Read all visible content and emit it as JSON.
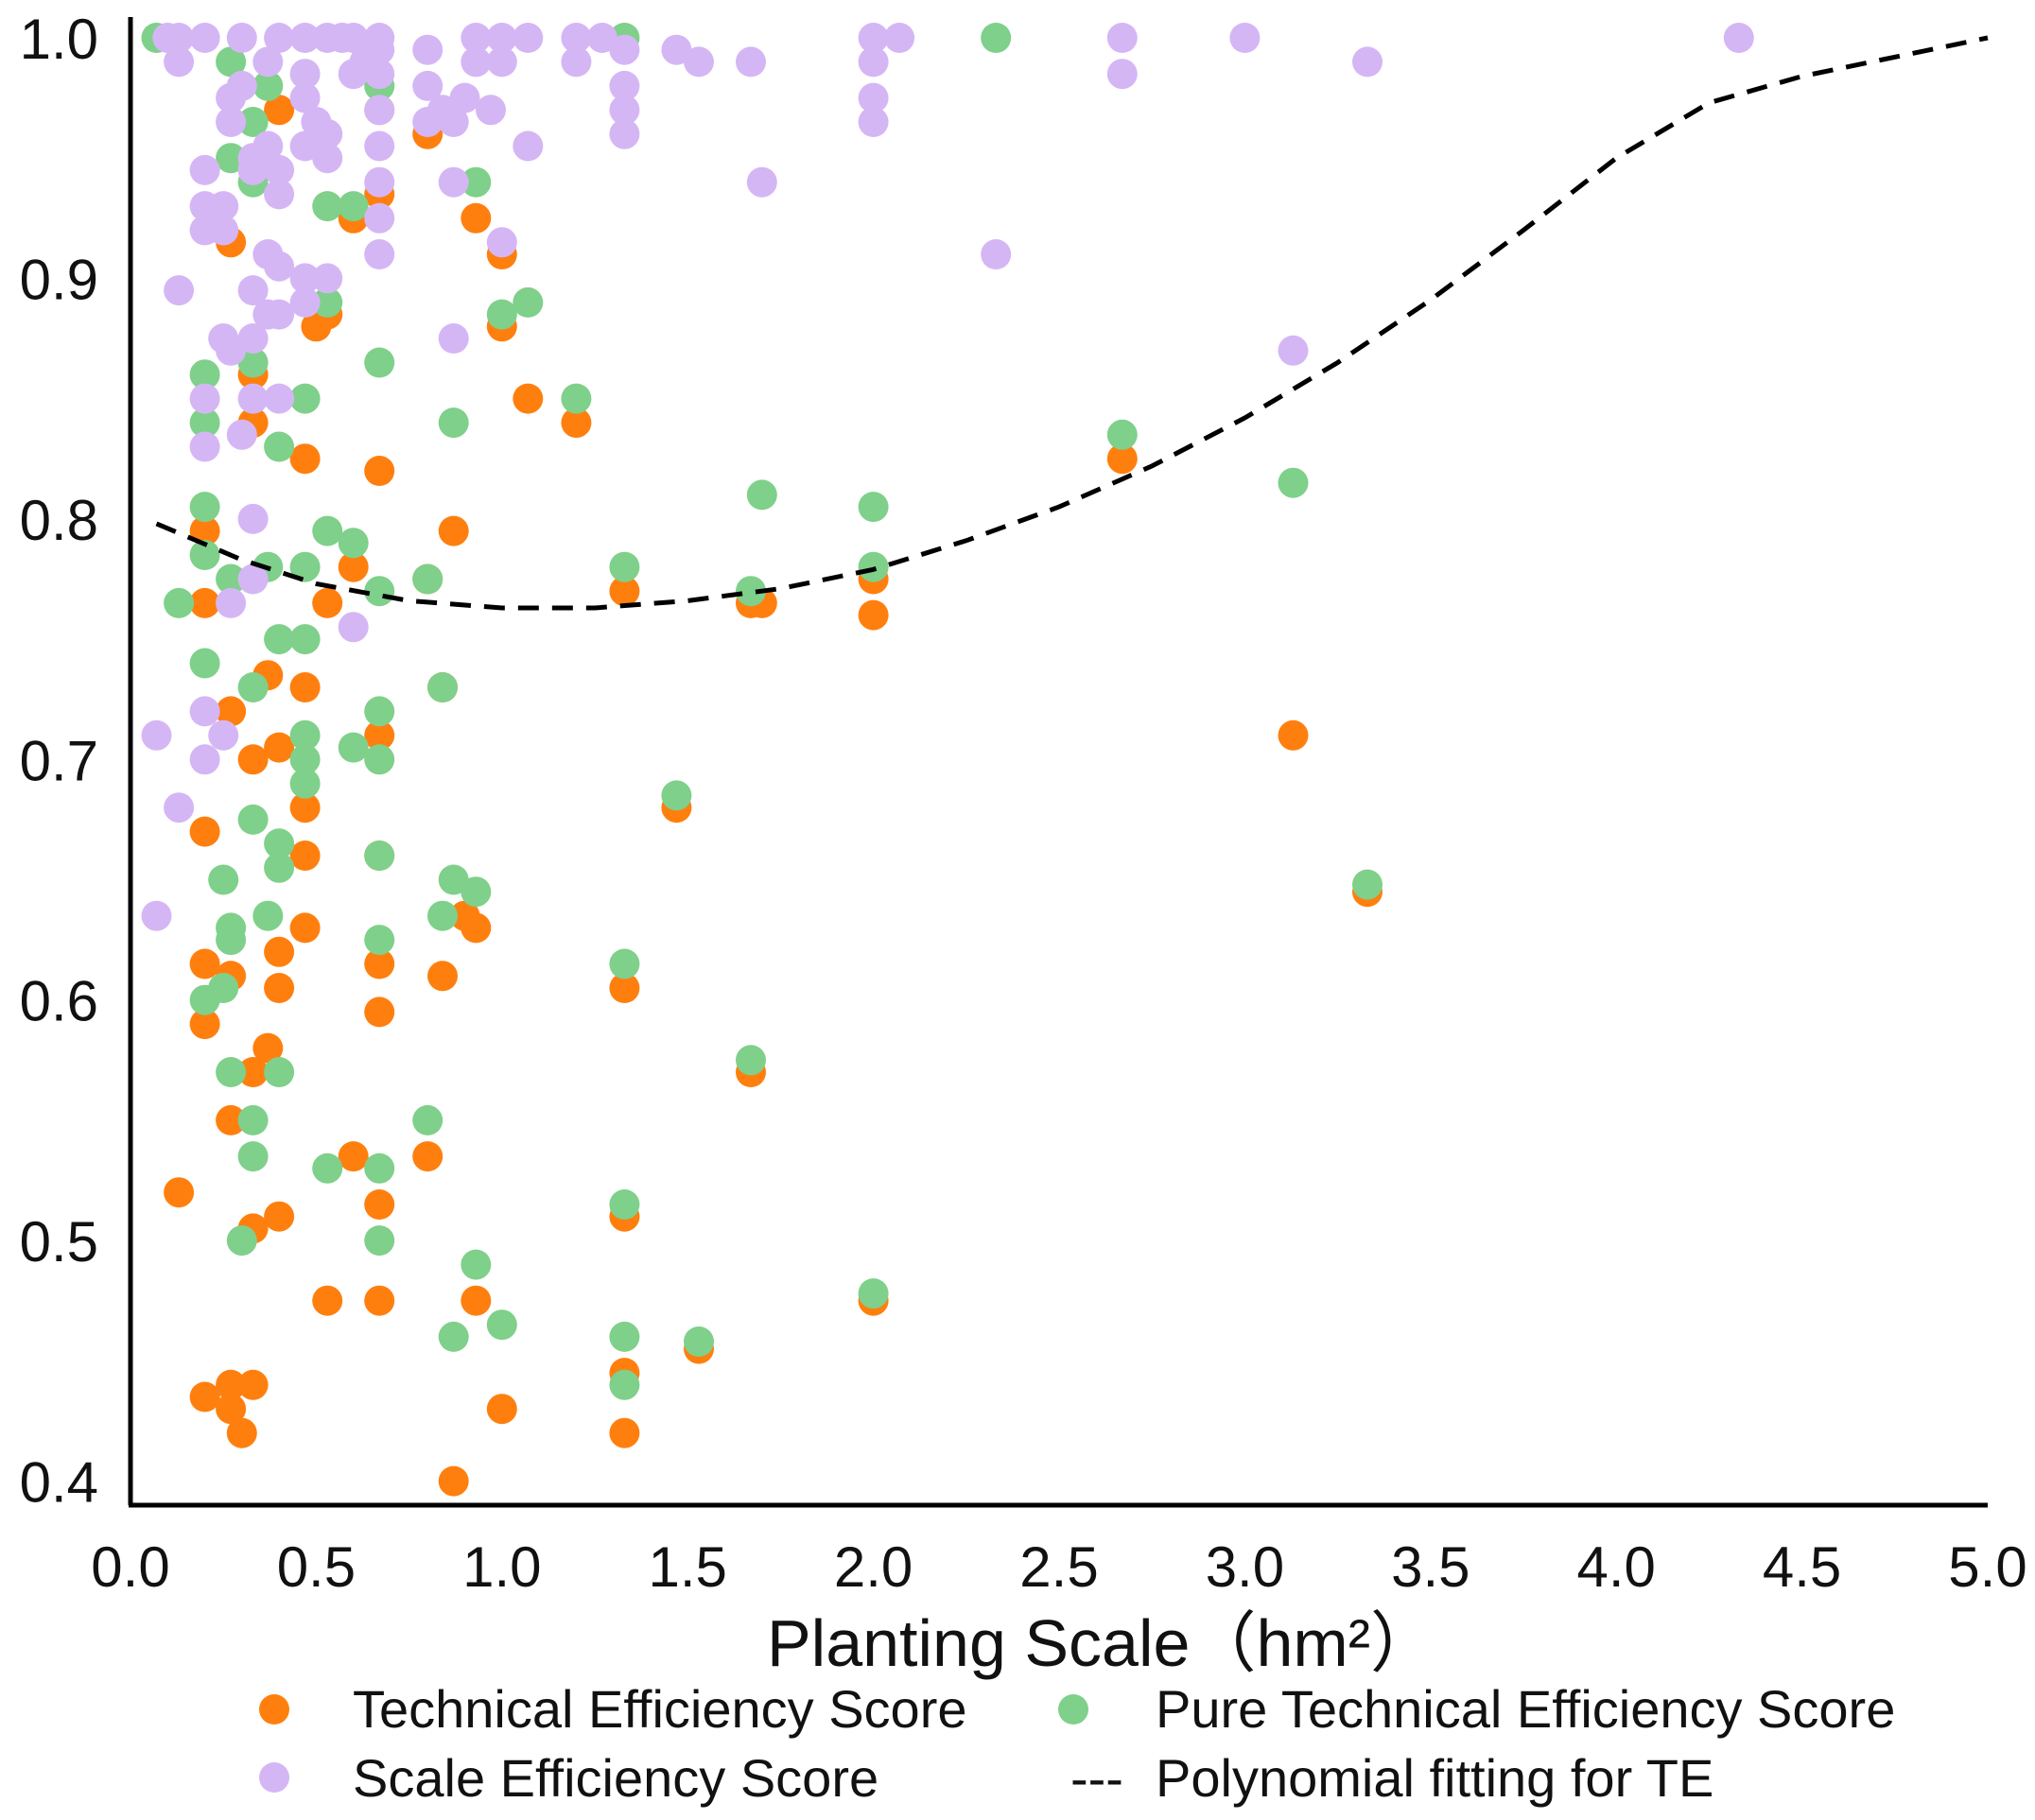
{
  "chart_data": {
    "type": "scatter",
    "title": "",
    "xlabel": "Planting Scale（hm²）",
    "ylabel": "",
    "xlim": [
      0.0,
      5.0
    ],
    "ylim": [
      0.39,
      1.0
    ],
    "xticks": [
      "0.0",
      "0.5",
      "1.0",
      "1.5",
      "2.0",
      "2.5",
      "3.0",
      "3.5",
      "4.0",
      "4.5",
      "5.0"
    ],
    "yticks": [
      "0.4",
      "0.5",
      "0.6",
      "0.7",
      "0.8",
      "0.9",
      "1.0"
    ],
    "grid": false,
    "legend_position": "bottom",
    "series": [
      {
        "name": "Technical Efficiency Score",
        "color": "#ff7f0e",
        "points": [
          [
            0.13,
            0.52
          ],
          [
            0.2,
            0.435
          ],
          [
            0.2,
            0.615
          ],
          [
            0.2,
            0.67
          ],
          [
            0.2,
            0.59
          ],
          [
            0.2,
            0.765
          ],
          [
            0.2,
            0.795
          ],
          [
            0.27,
            0.43
          ],
          [
            0.27,
            0.44
          ],
          [
            0.27,
            0.55
          ],
          [
            0.27,
            0.61
          ],
          [
            0.27,
            0.72
          ],
          [
            0.27,
            0.915
          ],
          [
            0.3,
            0.42
          ],
          [
            0.33,
            0.44
          ],
          [
            0.33,
            0.505
          ],
          [
            0.33,
            0.57
          ],
          [
            0.33,
            0.7
          ],
          [
            0.33,
            0.84
          ],
          [
            0.33,
            0.86
          ],
          [
            0.37,
            0.58
          ],
          [
            0.37,
            0.735
          ],
          [
            0.4,
            0.51
          ],
          [
            0.4,
            0.605
          ],
          [
            0.4,
            0.62
          ],
          [
            0.4,
            0.705
          ],
          [
            0.47,
            0.63
          ],
          [
            0.47,
            0.66
          ],
          [
            0.47,
            0.68
          ],
          [
            0.47,
            0.73
          ],
          [
            0.47,
            0.825
          ],
          [
            0.5,
            0.88
          ],
          [
            0.53,
            0.475
          ],
          [
            0.53,
            0.765
          ],
          [
            0.53,
            0.885
          ],
          [
            0.6,
            0.535
          ],
          [
            0.6,
            0.78
          ],
          [
            0.6,
            0.925
          ],
          [
            0.67,
            0.475
          ],
          [
            0.67,
            0.515
          ],
          [
            0.67,
            0.595
          ],
          [
            0.67,
            0.615
          ],
          [
            0.67,
            0.66
          ],
          [
            0.67,
            0.71
          ],
          [
            0.67,
            0.82
          ],
          [
            0.67,
            0.935
          ],
          [
            0.67,
            0.97
          ],
          [
            0.8,
            0.535
          ],
          [
            0.8,
            0.775
          ],
          [
            0.8,
            0.96
          ],
          [
            0.84,
            0.61
          ],
          [
            0.84,
            0.73
          ],
          [
            0.87,
            0.4
          ],
          [
            0.87,
            0.795
          ],
          [
            0.9,
            0.635
          ],
          [
            0.93,
            0.475
          ],
          [
            0.93,
            0.63
          ],
          [
            0.93,
            0.925
          ],
          [
            1.0,
            0.43
          ],
          [
            1.0,
            0.88
          ],
          [
            1.0,
            0.91
          ],
          [
            1.07,
            0.85
          ],
          [
            1.2,
            0.84
          ],
          [
            1.33,
            0.42
          ],
          [
            1.33,
            0.445
          ],
          [
            1.33,
            0.51
          ],
          [
            1.33,
            0.605
          ],
          [
            1.33,
            0.77
          ],
          [
            1.47,
            0.68
          ],
          [
            1.53,
            0.455
          ],
          [
            1.67,
            0.57
          ],
          [
            1.67,
            0.765
          ],
          [
            1.7,
            0.765
          ],
          [
            2.0,
            0.475
          ],
          [
            2.0,
            0.76
          ],
          [
            2.0,
            0.775
          ],
          [
            2.67,
            0.825
          ],
          [
            3.13,
            0.71
          ],
          [
            3.33,
            0.645
          ],
          [
            0.4,
            0.97
          ]
        ]
      },
      {
        "name": "Pure Technical Efficiency Score",
        "color": "#7fd08a",
        "points": [
          [
            0.07,
            1.0
          ],
          [
            0.13,
            0.765
          ],
          [
            0.2,
            0.6
          ],
          [
            0.2,
            0.74
          ],
          [
            0.2,
            0.785
          ],
          [
            0.2,
            0.805
          ],
          [
            0.2,
            0.84
          ],
          [
            0.2,
            0.86
          ],
          [
            0.25,
            0.605
          ],
          [
            0.25,
            0.65
          ],
          [
            0.27,
            0.57
          ],
          [
            0.27,
            0.625
          ],
          [
            0.27,
            0.63
          ],
          [
            0.27,
            0.775
          ],
          [
            0.27,
            0.95
          ],
          [
            0.27,
            0.99
          ],
          [
            0.3,
            0.5
          ],
          [
            0.33,
            0.535
          ],
          [
            0.33,
            0.55
          ],
          [
            0.33,
            0.675
          ],
          [
            0.33,
            0.73
          ],
          [
            0.33,
            0.865
          ],
          [
            0.33,
            0.94
          ],
          [
            0.33,
            0.965
          ],
          [
            0.37,
            0.635
          ],
          [
            0.37,
            0.78
          ],
          [
            0.37,
            0.98
          ],
          [
            0.4,
            0.57
          ],
          [
            0.4,
            0.655
          ],
          [
            0.4,
            0.665
          ],
          [
            0.4,
            0.75
          ],
          [
            0.4,
            0.83
          ],
          [
            0.47,
            0.69
          ],
          [
            0.47,
            0.7
          ],
          [
            0.47,
            0.71
          ],
          [
            0.47,
            0.75
          ],
          [
            0.47,
            0.78
          ],
          [
            0.47,
            0.85
          ],
          [
            0.53,
            0.53
          ],
          [
            0.53,
            0.795
          ],
          [
            0.53,
            0.89
          ],
          [
            0.53,
            0.93
          ],
          [
            0.6,
            0.705
          ],
          [
            0.6,
            0.79
          ],
          [
            0.6,
            0.93
          ],
          [
            0.67,
            0.5
          ],
          [
            0.67,
            0.53
          ],
          [
            0.67,
            0.625
          ],
          [
            0.67,
            0.66
          ],
          [
            0.67,
            0.7
          ],
          [
            0.67,
            0.72
          ],
          [
            0.67,
            0.77
          ],
          [
            0.67,
            0.865
          ],
          [
            0.67,
            0.98
          ],
          [
            0.8,
            0.55
          ],
          [
            0.8,
            0.775
          ],
          [
            0.84,
            0.635
          ],
          [
            0.84,
            0.73
          ],
          [
            0.87,
            0.46
          ],
          [
            0.87,
            0.65
          ],
          [
            0.87,
            0.84
          ],
          [
            0.93,
            0.49
          ],
          [
            0.93,
            0.645
          ],
          [
            0.93,
            0.94
          ],
          [
            1.0,
            0.465
          ],
          [
            1.0,
            0.885
          ],
          [
            1.07,
            0.89
          ],
          [
            1.2,
            0.85
          ],
          [
            1.33,
            0.44
          ],
          [
            1.33,
            0.46
          ],
          [
            1.33,
            0.515
          ],
          [
            1.33,
            0.615
          ],
          [
            1.33,
            0.78
          ],
          [
            1.33,
            1.0
          ],
          [
            1.47,
            0.685
          ],
          [
            1.53,
            0.458
          ],
          [
            1.67,
            0.575
          ],
          [
            1.67,
            0.77
          ],
          [
            1.7,
            0.81
          ],
          [
            2.0,
            0.478
          ],
          [
            2.0,
            0.78
          ],
          [
            2.0,
            0.805
          ],
          [
            2.33,
            1.0
          ],
          [
            2.67,
            0.835
          ],
          [
            3.13,
            0.815
          ],
          [
            3.33,
            0.648
          ]
        ]
      },
      {
        "name": "Scale Efficiency Score",
        "color": "#d5b6f5",
        "points": [
          [
            0.07,
            0.635
          ],
          [
            0.07,
            0.71
          ],
          [
            0.13,
            0.68
          ],
          [
            0.13,
            0.895
          ],
          [
            0.13,
            0.99
          ],
          [
            0.13,
            1.0
          ],
          [
            0.1,
            1.0
          ],
          [
            0.2,
            0.7
          ],
          [
            0.2,
            0.72
          ],
          [
            0.2,
            0.83
          ],
          [
            0.2,
            0.85
          ],
          [
            0.2,
            0.92
          ],
          [
            0.2,
            0.93
          ],
          [
            0.2,
            0.945
          ],
          [
            0.2,
            1.0
          ],
          [
            0.25,
            0.71
          ],
          [
            0.25,
            0.875
          ],
          [
            0.25,
            0.92
          ],
          [
            0.25,
            0.93
          ],
          [
            0.27,
            0.765
          ],
          [
            0.27,
            0.87
          ],
          [
            0.27,
            0.965
          ],
          [
            0.27,
            0.975
          ],
          [
            0.3,
            0.835
          ],
          [
            0.3,
            0.98
          ],
          [
            0.3,
            1.0
          ],
          [
            0.33,
            0.775
          ],
          [
            0.33,
            0.8
          ],
          [
            0.33,
            0.85
          ],
          [
            0.33,
            0.875
          ],
          [
            0.33,
            0.895
          ],
          [
            0.33,
            0.945
          ],
          [
            0.33,
            0.95
          ],
          [
            0.37,
            0.885
          ],
          [
            0.37,
            0.91
          ],
          [
            0.37,
            0.955
          ],
          [
            0.37,
            0.99
          ],
          [
            0.4,
            0.85
          ],
          [
            0.4,
            0.885
          ],
          [
            0.4,
            0.905
          ],
          [
            0.4,
            0.935
          ],
          [
            0.4,
            0.945
          ],
          [
            0.4,
            1.0
          ],
          [
            0.47,
            0.89
          ],
          [
            0.47,
            0.9
          ],
          [
            0.47,
            0.955
          ],
          [
            0.47,
            0.975
          ],
          [
            0.47,
            0.985
          ],
          [
            0.47,
            1.0
          ],
          [
            0.5,
            0.965
          ],
          [
            0.53,
            0.9
          ],
          [
            0.53,
            0.95
          ],
          [
            0.53,
            0.96
          ],
          [
            0.53,
            1.0
          ],
          [
            0.57,
            1.0
          ],
          [
            0.6,
            0.755
          ],
          [
            0.6,
            0.985
          ],
          [
            0.6,
            1.0
          ],
          [
            0.63,
            0.99
          ],
          [
            0.67,
            0.91
          ],
          [
            0.67,
            0.925
          ],
          [
            0.67,
            0.94
          ],
          [
            0.67,
            0.955
          ],
          [
            0.67,
            0.97
          ],
          [
            0.67,
            0.985
          ],
          [
            0.67,
            0.995
          ],
          [
            0.67,
            1.0
          ],
          [
            0.8,
            0.965
          ],
          [
            0.8,
            0.98
          ],
          [
            0.8,
            0.995
          ],
          [
            0.84,
            0.97
          ],
          [
            0.87,
            0.94
          ],
          [
            0.87,
            0.965
          ],
          [
            0.87,
            0.875
          ],
          [
            0.9,
            0.975
          ],
          [
            0.93,
            0.99
          ],
          [
            0.93,
            1.0
          ],
          [
            0.97,
            0.97
          ],
          [
            1.0,
            0.915
          ],
          [
            1.0,
            0.99
          ],
          [
            1.0,
            1.0
          ],
          [
            1.07,
            0.955
          ],
          [
            1.07,
            1.0
          ],
          [
            1.2,
            0.99
          ],
          [
            1.2,
            1.0
          ],
          [
            1.27,
            1.0
          ],
          [
            1.33,
            0.96
          ],
          [
            1.33,
            0.97
          ],
          [
            1.33,
            0.98
          ],
          [
            1.33,
            0.995
          ],
          [
            1.47,
            0.995
          ],
          [
            1.53,
            0.99
          ],
          [
            1.7,
            0.94
          ],
          [
            1.67,
            0.99
          ],
          [
            2.0,
            0.965
          ],
          [
            2.0,
            0.975
          ],
          [
            2.0,
            0.99
          ],
          [
            2.0,
            1.0
          ],
          [
            2.07,
            1.0
          ],
          [
            2.33,
            0.91
          ],
          [
            2.67,
            0.985
          ],
          [
            2.67,
            1.0
          ],
          [
            3.0,
            1.0
          ],
          [
            3.13,
            0.87
          ],
          [
            3.33,
            0.99
          ],
          [
            4.33,
            1.0
          ]
        ]
      }
    ],
    "fit_line": {
      "name": "Polynomial fitting for TE",
      "style": "dashed",
      "color": "#000000",
      "points": [
        [
          0.07,
          0.798
        ],
        [
          0.3,
          0.783
        ],
        [
          0.5,
          0.773
        ],
        [
          0.75,
          0.766
        ],
        [
          1.0,
          0.763
        ],
        [
          1.25,
          0.763
        ],
        [
          1.5,
          0.766
        ],
        [
          1.75,
          0.771
        ],
        [
          2.0,
          0.779
        ],
        [
          2.25,
          0.791
        ],
        [
          2.5,
          0.805
        ],
        [
          2.75,
          0.822
        ],
        [
          3.0,
          0.842
        ],
        [
          3.25,
          0.865
        ],
        [
          3.5,
          0.891
        ],
        [
          3.75,
          0.92
        ],
        [
          4.0,
          0.95
        ],
        [
          4.25,
          0.973
        ],
        [
          4.5,
          0.984
        ],
        [
          5.0,
          1.0
        ]
      ]
    },
    "legend": [
      {
        "label": "Technical Efficiency Score",
        "marker": "dot",
        "color": "#ff7f0e"
      },
      {
        "label": "Pure Technical Efficiency Score",
        "marker": "dot",
        "color": "#7fd08a"
      },
      {
        "label": "Scale Efficiency Score",
        "marker": "dot",
        "color": "#d5b6f5"
      },
      {
        "label": "Polynomial fitting for TE",
        "marker": "---",
        "color": "#000000"
      }
    ]
  }
}
